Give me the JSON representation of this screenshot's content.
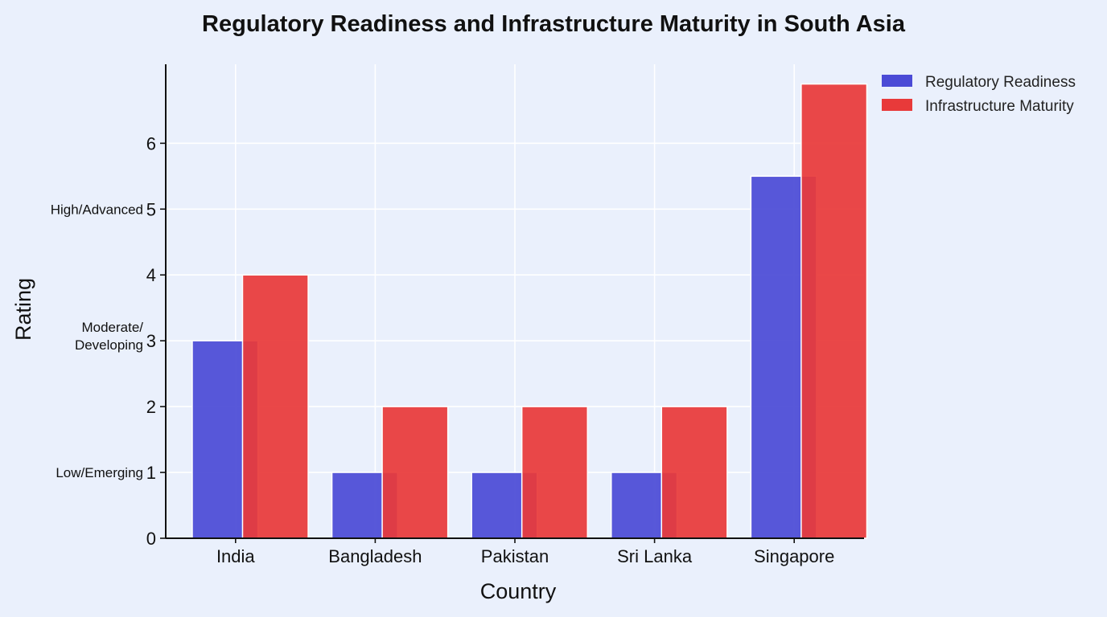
{
  "chart_data": {
    "type": "bar",
    "title": "Regulatory Readiness and Infrastructure Maturity in South Asia",
    "xlabel": "Country",
    "ylabel": "Rating",
    "categories": [
      "India",
      "Bangladesh",
      "Pakistan",
      "Sri Lanka",
      "Singapore"
    ],
    "series": [
      {
        "name": "Regulatory Readiness",
        "color": "#4b4bd6",
        "values": [
          3,
          1,
          1,
          1,
          5.5
        ]
      },
      {
        "name": "Infrastructure Maturity",
        "color": "#e83a3a",
        "values": [
          4,
          2,
          2,
          2,
          6.9
        ]
      }
    ],
    "ylim": [
      0,
      7.2
    ],
    "yticks": [
      0,
      1,
      2,
      3,
      4,
      5,
      6
    ],
    "level_labels": [
      {
        "value": 1,
        "lines": [
          "Low/Emerging"
        ]
      },
      {
        "value": 3,
        "lines": [
          "Moderate/",
          "Developing"
        ]
      },
      {
        "value": 5,
        "lines": [
          "High/Advanced"
        ]
      }
    ],
    "grid": true,
    "legend_position": "top-right"
  }
}
